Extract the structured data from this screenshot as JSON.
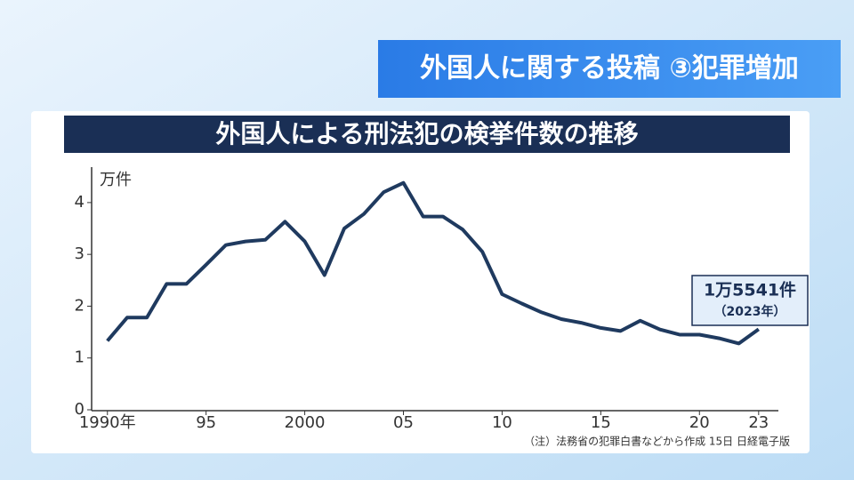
{
  "banner": "外国人に関する投稿 ③犯罪増加",
  "chart_data": {
    "type": "line",
    "title": "外国人による刑法犯の検挙件数の推移",
    "y_unit": "万件",
    "x": [
      1990,
      1991,
      1992,
      1993,
      1994,
      1995,
      1996,
      1997,
      1998,
      1999,
      2000,
      2001,
      2002,
      2003,
      2004,
      2005,
      2006,
      2007,
      2008,
      2009,
      2010,
      2011,
      2012,
      2013,
      2014,
      2015,
      2016,
      2017,
      2018,
      2019,
      2020,
      2021,
      2022,
      2023
    ],
    "values": [
      1.33,
      1.78,
      1.78,
      2.43,
      2.43,
      2.8,
      3.18,
      3.25,
      3.28,
      3.63,
      3.25,
      2.6,
      3.5,
      3.78,
      4.2,
      4.38,
      3.73,
      3.73,
      3.48,
      3.05,
      2.23,
      2.05,
      1.88,
      1.75,
      1.68,
      1.58,
      1.52,
      1.72,
      1.55,
      1.45,
      1.45,
      1.38,
      1.28,
      1.5541
    ],
    "color": "#1f3a5f",
    "xlim": [
      1989.2,
      2024
    ],
    "ylim": [
      0,
      4.65
    ],
    "xticks": [
      {
        "value": 1990,
        "label": "1990年"
      },
      {
        "value": 1995,
        "label": "95"
      },
      2000,
      {
        "value": 2005,
        "label": "05"
      },
      {
        "value": 2010,
        "label": "10"
      },
      {
        "value": 2015,
        "label": "15"
      },
      {
        "value": 2020,
        "label": "20"
      },
      {
        "value": 2023,
        "label": "23"
      }
    ],
    "yticks": [
      0,
      1,
      2,
      3,
      4
    ],
    "annotation": {
      "text": "1万5541件",
      "subtext": "（2023年）"
    },
    "note": "（注）法務省の犯罪白書などから作成 15日 日経電子版"
  }
}
